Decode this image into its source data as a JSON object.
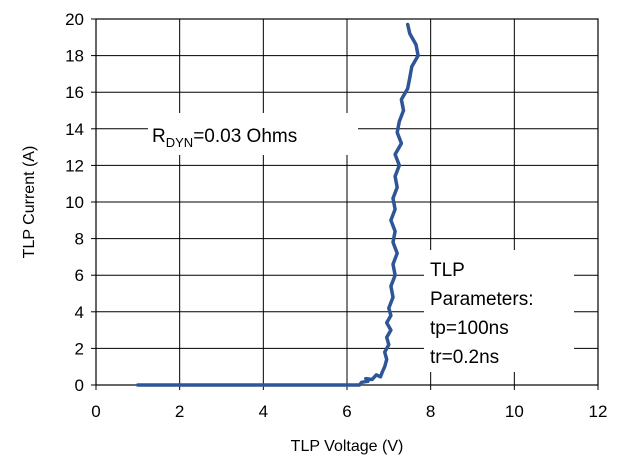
{
  "chart_data": {
    "type": "line",
    "title": "",
    "xlabel": "TLP Voltage (V)",
    "ylabel": "TLP Current (A)",
    "xlim": [
      0,
      12
    ],
    "ylim": [
      0,
      20
    ],
    "x_ticks": [
      0,
      2,
      4,
      6,
      8,
      10,
      12
    ],
    "y_ticks": [
      0,
      2,
      4,
      6,
      8,
      10,
      12,
      14,
      16,
      18,
      20
    ],
    "grid": true,
    "legend": "none",
    "series": [
      {
        "color": "#2e5597",
        "points": [
          [
            1.0,
            0.0
          ],
          [
            2.0,
            0.0
          ],
          [
            3.0,
            0.0
          ],
          [
            4.0,
            0.0
          ],
          [
            5.0,
            0.0
          ],
          [
            6.0,
            0.0
          ],
          [
            6.3,
            0.0
          ],
          [
            6.35,
            0.15
          ],
          [
            6.5,
            0.2
          ],
          [
            6.45,
            0.35
          ],
          [
            6.6,
            0.3
          ],
          [
            6.7,
            0.55
          ],
          [
            6.8,
            0.45
          ],
          [
            6.85,
            0.75
          ],
          [
            6.9,
            1.0
          ],
          [
            6.95,
            1.4
          ],
          [
            6.9,
            1.8
          ],
          [
            7.0,
            2.2
          ],
          [
            6.95,
            2.6
          ],
          [
            7.05,
            3.0
          ],
          [
            6.95,
            3.4
          ],
          [
            7.05,
            3.8
          ],
          [
            7.0,
            4.2
          ],
          [
            7.1,
            4.8
          ],
          [
            7.05,
            5.4
          ],
          [
            7.15,
            6.0
          ],
          [
            7.1,
            6.6
          ],
          [
            7.2,
            7.2
          ],
          [
            7.1,
            7.8
          ],
          [
            7.15,
            8.4
          ],
          [
            7.05,
            9.0
          ],
          [
            7.15,
            9.6
          ],
          [
            7.1,
            10.2
          ],
          [
            7.2,
            10.8
          ],
          [
            7.15,
            11.4
          ],
          [
            7.25,
            12.0
          ],
          [
            7.15,
            12.6
          ],
          [
            7.3,
            13.2
          ],
          [
            7.2,
            13.8
          ],
          [
            7.25,
            14.4
          ],
          [
            7.35,
            15.0
          ],
          [
            7.3,
            15.6
          ],
          [
            7.45,
            16.2
          ],
          [
            7.5,
            16.8
          ],
          [
            7.55,
            17.4
          ],
          [
            7.7,
            18.0
          ],
          [
            7.65,
            18.6
          ],
          [
            7.5,
            19.2
          ],
          [
            7.45,
            19.7
          ]
        ]
      }
    ],
    "annotations": [
      {
        "id": "rdyn",
        "main": "R",
        "sub": "DYN",
        "rest": "=0.03  Ohms"
      },
      {
        "id": "tlp",
        "lines": [
          "TLP",
          "Parameters:",
          "tp=100ns",
          "tr=0.2ns"
        ]
      }
    ]
  }
}
